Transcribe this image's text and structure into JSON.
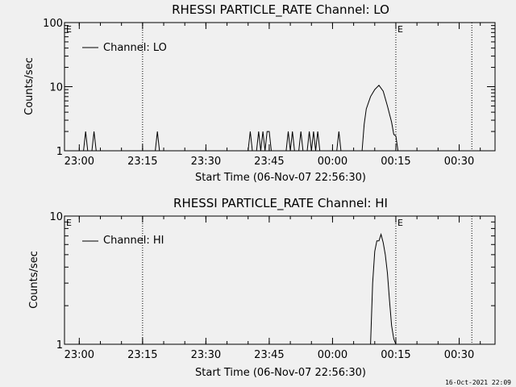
{
  "chart_data": [
    {
      "type": "line",
      "title": "RHESSI PARTICLE_RATE Channel: LO",
      "xlabel": "Start Time (06-Nov-07 22:56:30)",
      "ylabel": "Counts/sec",
      "yscale": "log",
      "ylim": [
        1,
        100
      ],
      "ytick_labels": [
        "1",
        "10",
        "100"
      ],
      "xlim": [
        "22:56:30",
        "00:38:30"
      ],
      "xtick_labels": [
        "23:00",
        "23:15",
        "23:30",
        "23:45",
        "00:00",
        "00:15",
        "00:30"
      ],
      "markers": [
        {
          "label": "",
          "time": "23:15",
          "style": "dotted"
        },
        {
          "label": "E",
          "time": "00:15",
          "style": "dotted"
        },
        {
          "label": "",
          "time": "00:33",
          "style": "dotted"
        },
        {
          "label": "E",
          "time": "22:56:30",
          "style": "none"
        }
      ],
      "legend": {
        "entries": [
          "Channel: LO"
        ],
        "placement": "top-left"
      },
      "series": [
        {
          "name": "Channel: LO",
          "x": [
            "23:01:00",
            "23:01:30",
            "23:02:00",
            "23:03:00",
            "23:03:30",
            "23:04:00",
            "23:18:00",
            "23:18:30",
            "23:19:00",
            "23:40:00",
            "23:40:30",
            "23:41:00",
            "23:42:00",
            "23:42:30",
            "23:43:00",
            "23:43:30",
            "23:44:00",
            "23:44:30",
            "23:45:00",
            "23:45:30",
            "23:46:00",
            "23:49:00",
            "23:49:30",
            "23:50:00",
            "23:50:30",
            "23:51:00",
            "23:52:00",
            "23:52:30",
            "23:53:00",
            "23:54:00",
            "23:54:30",
            "23:55:00",
            "23:55:30",
            "23:56:00",
            "23:56:30",
            "23:57:00",
            "00:01:00",
            "00:01:30",
            "00:02:00",
            "00:07:00",
            "00:07:30",
            "00:08:00",
            "00:09:00",
            "00:10:00",
            "00:11:00",
            "00:12:00",
            "00:13:00",
            "00:14:00",
            "00:14:30",
            "00:15:00",
            "00:15:30"
          ],
          "y": [
            1,
            2,
            1,
            1,
            2,
            1,
            1,
            2,
            1,
            1,
            2,
            1,
            1,
            2,
            1,
            2,
            1,
            2,
            2,
            1,
            1,
            1,
            2,
            1,
            2,
            1,
            1,
            2,
            1,
            1,
            2,
            1,
            2,
            1,
            2,
            1,
            1,
            2,
            1,
            1,
            2.6,
            4.5,
            7,
            9,
            10.5,
            8.5,
            5,
            2.8,
            1.8,
            1.7,
            1
          ]
        }
      ]
    },
    {
      "type": "line",
      "title": "RHESSI PARTICLE_RATE Channel: HI",
      "xlabel": "Start Time (06-Nov-07 22:56:30)",
      "ylabel": "Counts/sec",
      "yscale": "log",
      "ylim": [
        1,
        10
      ],
      "ytick_labels": [
        "1",
        "10"
      ],
      "xlim": [
        "22:56:30",
        "00:38:30"
      ],
      "xtick_labels": [
        "23:00",
        "23:15",
        "23:30",
        "23:45",
        "00:00",
        "00:15",
        "00:30"
      ],
      "markers": [
        {
          "label": "",
          "time": "23:15",
          "style": "dotted"
        },
        {
          "label": "E",
          "time": "00:15",
          "style": "dotted"
        },
        {
          "label": "",
          "time": "00:33",
          "style": "dotted"
        },
        {
          "label": "E",
          "time": "22:56:30",
          "style": "none"
        }
      ],
      "legend": {
        "entries": [
          "Channel: HI"
        ],
        "placement": "top-left"
      },
      "series": [
        {
          "name": "Channel: HI",
          "x": [
            "00:09:00",
            "00:09:30",
            "00:10:00",
            "00:10:30",
            "00:11:00",
            "00:11:30",
            "00:12:00",
            "00:12:30",
            "00:13:00",
            "00:13:30",
            "00:14:00",
            "00:14:30",
            "00:15:00"
          ],
          "y": [
            1,
            3,
            5.3,
            6.4,
            6.4,
            7.2,
            6.2,
            5.0,
            3.6,
            2.2,
            1.4,
            1.1,
            1
          ]
        }
      ]
    }
  ],
  "footer": {
    "timestamp": "16-Oct-2021 22:09"
  }
}
